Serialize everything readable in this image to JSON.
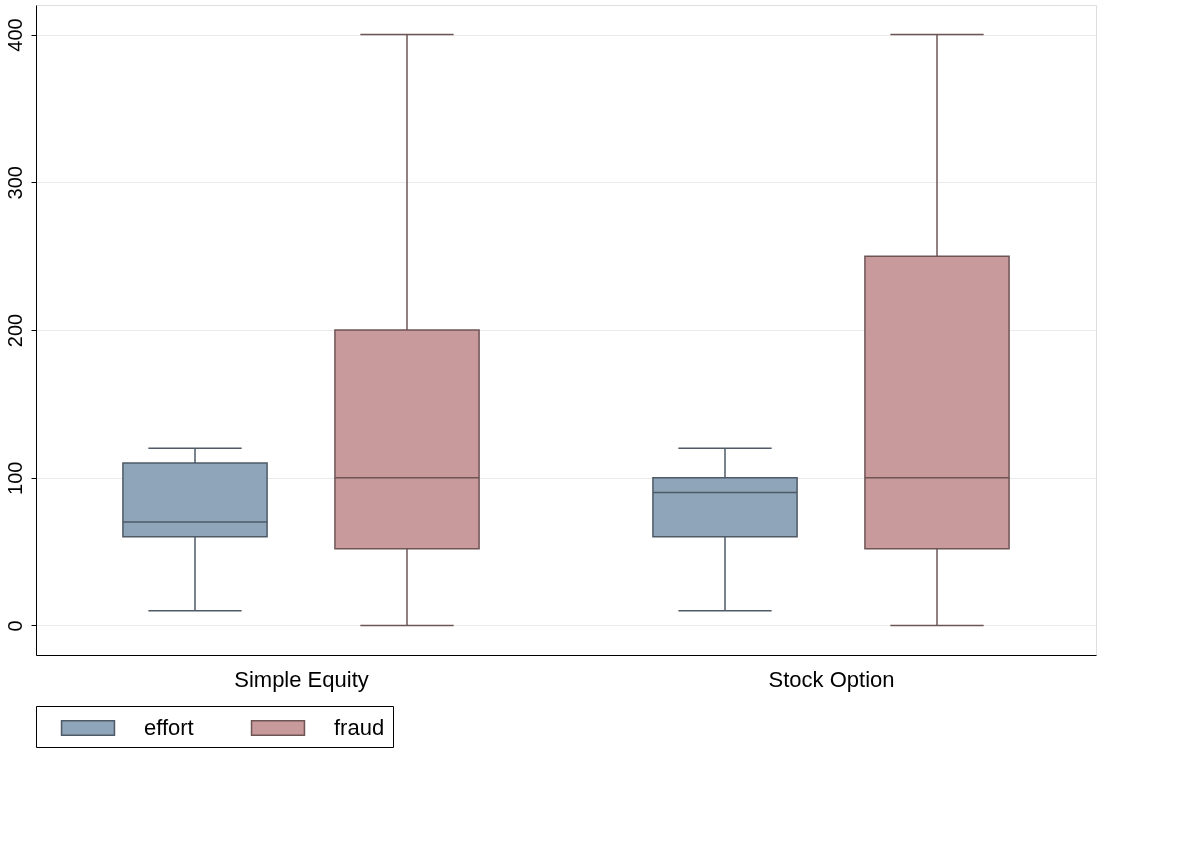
{
  "chart_data": {
    "type": "box",
    "categories": [
      "Simple Equity",
      "Stock Option"
    ],
    "series": [
      {
        "name": "effort",
        "color": "#8fa5ba",
        "boxes": [
          {
            "low": 10,
            "q1": 60,
            "median": 70,
            "q3": 110,
            "high": 120
          },
          {
            "low": 10,
            "q1": 60,
            "median": 90,
            "q3": 100,
            "high": 120
          }
        ]
      },
      {
        "name": "fraud",
        "color": "#c89a9b",
        "boxes": [
          {
            "low": 0,
            "q1": 52,
            "median": 100,
            "q3": 200,
            "high": 400
          },
          {
            "low": 0,
            "q1": 52,
            "median": 100,
            "q3": 250,
            "high": 400
          }
        ]
      }
    ],
    "ylim": [
      -20,
      420
    ],
    "yticks": [
      0,
      100,
      200,
      300,
      400
    ],
    "grid": "y",
    "legend": "bottom"
  }
}
